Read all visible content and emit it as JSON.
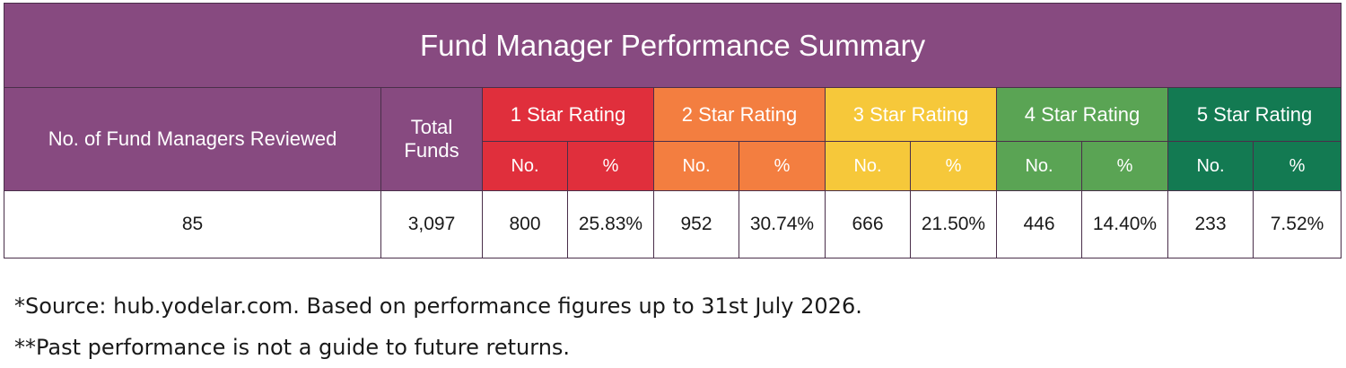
{
  "title": "Fund Manager Performance Summary",
  "headers": {
    "managers": "No. of Fund Managers Reviewed",
    "total_funds_line1": "Total",
    "total_funds_line2": "Funds",
    "ratings": [
      {
        "label": "1 Star Rating",
        "no": "No.",
        "pct": "%",
        "color": "#e02f3c"
      },
      {
        "label": "2 Star Rating",
        "no": "No.",
        "pct": "%",
        "color": "#f37e40"
      },
      {
        "label": "3 Star Rating",
        "no": "No.",
        "pct": "%",
        "color": "#f6c83a"
      },
      {
        "label": "4 Star Rating",
        "no": "No.",
        "pct": "%",
        "color": "#5aa454"
      },
      {
        "label": "5 Star Rating",
        "no": "No.",
        "pct": "%",
        "color": "#137a52"
      }
    ]
  },
  "row": {
    "managers": "85",
    "total_funds": "3,097",
    "ratings": [
      {
        "no": "800",
        "pct": "25.83%"
      },
      {
        "no": "952",
        "pct": "30.74%"
      },
      {
        "no": "666",
        "pct": "21.50%"
      },
      {
        "no": "446",
        "pct": "14.40%"
      },
      {
        "no": "233",
        "pct": "7.52%"
      }
    ]
  },
  "notes": [
    "*Source: hub.yodelar.com. Based on performance figures up to 31st July 2026.",
    "**Past performance is not a guide to future returns."
  ],
  "colors": {
    "header_purple": "#874a80"
  }
}
